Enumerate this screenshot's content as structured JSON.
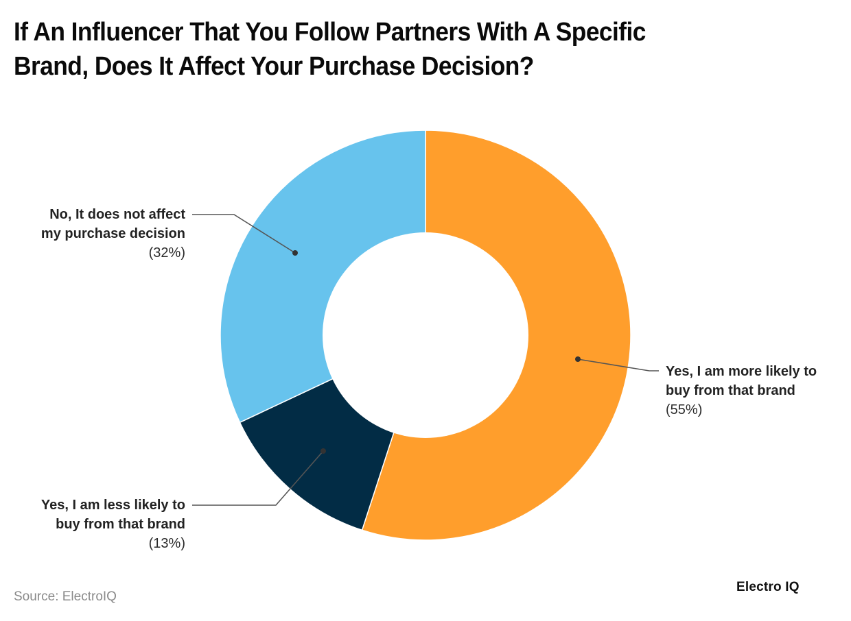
{
  "title": {
    "line1": "If An Influencer That You Follow Partners With A Specific",
    "line2": "Brand, Does It Affect Your Purchase Decision?"
  },
  "labels": {
    "more_likely": {
      "name_line1": "Yes, I am more likely to",
      "name_line2": "buy from that brand",
      "pct": "(55%)"
    },
    "less_likely": {
      "name_line1": "Yes, I am less likely to",
      "name_line2": "buy from that brand",
      "pct": "(13%)"
    },
    "no_effect": {
      "name_line1": "No, It does not affect",
      "name_line2": "my purchase decision",
      "pct": "(32%)"
    }
  },
  "footer": {
    "source": "Source: ElectroIQ",
    "brand": "Electro IQ"
  },
  "colors": {
    "more_likely": "#FF9E2C",
    "less_likely": "#022C45",
    "no_effect": "#67C3ED",
    "leader_line": "#555555",
    "dot": "#333333"
  },
  "chart_data": {
    "type": "pie",
    "variant": "donut",
    "title": "If An Influencer That You Follow Partners With A Specific Brand, Does It Affect Your Purchase Decision?",
    "categories": [
      "Yes, I am more likely to buy from that brand",
      "Yes, I am less likely to buy from that brand",
      "No, It does not affect my purchase decision"
    ],
    "values": [
      55,
      13,
      32
    ],
    "unit": "%",
    "colors": [
      "#FF9E2C",
      "#022C45",
      "#67C3ED"
    ],
    "start_angle": "12 o'clock, clockwise",
    "legend": "none (direct labels with leader lines)",
    "source": "Source: ElectroIQ"
  }
}
